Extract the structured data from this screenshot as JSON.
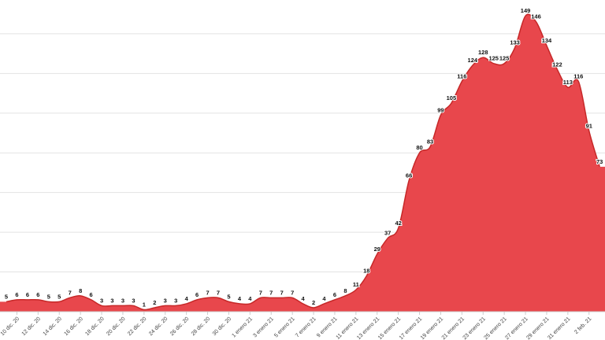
{
  "chart_data": {
    "type": "area",
    "categories": [
      null,
      "10 dic. 20",
      null,
      "12 dic. 20",
      null,
      "14 dic. 20",
      null,
      "16 dic. 20",
      null,
      "18 dic. 20",
      null,
      "20 dic. 20",
      null,
      "22 dic. 20",
      null,
      "24 dic. 20",
      null,
      "26 dic. 20",
      null,
      "28 dic. 20",
      null,
      "30 dic. 20",
      null,
      "1 enero 21",
      null,
      "3 enero 21",
      null,
      "5 enero 21",
      null,
      "7 enero 21",
      null,
      "9 enero 21",
      null,
      "11 enero 21",
      null,
      "13 enero 21",
      null,
      "15 enero 21",
      null,
      "17 enero 21",
      null,
      "19 enero 21",
      null,
      "21 enero 21",
      null,
      "23 enero 21",
      null,
      "25 enero 21",
      null,
      "27 enero 21",
      null,
      "29 enero 21",
      null,
      "31 enero 21",
      null,
      "2 feb. 21",
      null
    ],
    "values": [
      5,
      6,
      6,
      6,
      5,
      5,
      7,
      8,
      6,
      3,
      3,
      3,
      3,
      1,
      2,
      3,
      3,
      4,
      6,
      7,
      7,
      5,
      4,
      4,
      7,
      7,
      7,
      7,
      4,
      2,
      4,
      6,
      8,
      11,
      18,
      29,
      37,
      42,
      66,
      80,
      83,
      99,
      105,
      116,
      124,
      128,
      125,
      125,
      133,
      149,
      146,
      134,
      122,
      113,
      116,
      91,
      73
    ],
    "color": "#e8474c",
    "ylim": [
      0,
      157
    ],
    "yticks": [
      20,
      40,
      60,
      80,
      100,
      120,
      140
    ],
    "grid": true
  }
}
